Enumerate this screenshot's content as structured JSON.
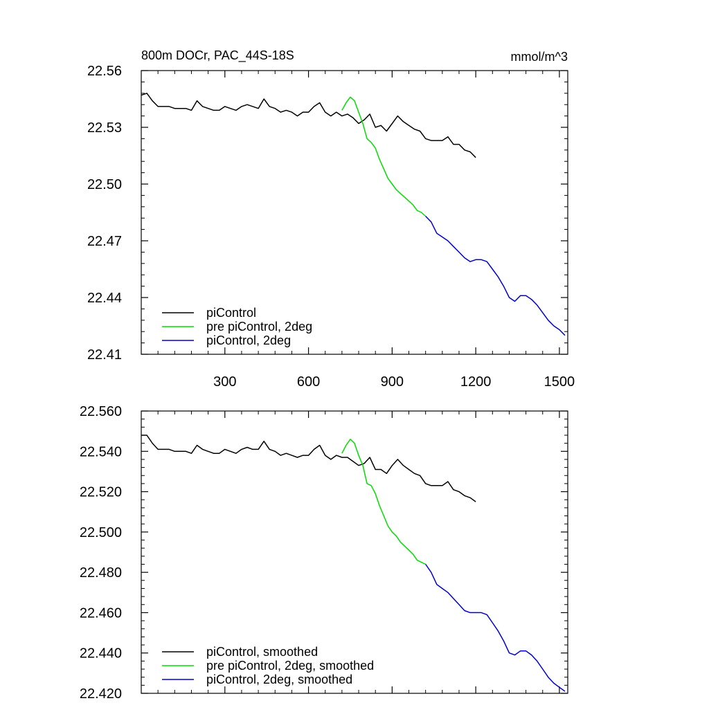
{
  "chart_data": [
    {
      "type": "line",
      "title": "800m DOCr, PAC_44S-18S",
      "units": "mmol/m^3",
      "xlim": [
        0,
        1530
      ],
      "ylim": [
        22.41,
        22.56
      ],
      "xticks": [
        300,
        600,
        900,
        1200,
        1500
      ],
      "xtick_labels": [
        "300",
        "600",
        "900",
        "1200",
        "1500"
      ],
      "yticks": [
        22.41,
        22.44,
        22.47,
        22.5,
        22.53,
        22.56
      ],
      "ytick_labels": [
        "22.41",
        "22.44",
        "22.47",
        "22.50",
        "22.53",
        "22.56"
      ],
      "legend_position": "bottom-left",
      "series": [
        {
          "name": "piControl",
          "color": "#000000",
          "x": [
            0,
            20,
            40,
            60,
            80,
            100,
            120,
            140,
            160,
            180,
            200,
            220,
            240,
            260,
            280,
            300,
            320,
            340,
            360,
            380,
            400,
            420,
            440,
            460,
            480,
            500,
            520,
            540,
            560,
            580,
            600,
            620,
            640,
            660,
            680,
            700,
            720,
            740,
            760,
            780,
            800,
            820,
            840,
            860,
            880,
            900,
            920,
            940,
            960,
            980,
            1000,
            1020,
            1040,
            1060,
            1080,
            1100,
            1120,
            1140,
            1160,
            1180,
            1200
          ],
          "y": [
            22.547,
            22.548,
            22.544,
            22.541,
            22.541,
            22.541,
            22.54,
            22.54,
            22.54,
            22.539,
            22.544,
            22.541,
            22.54,
            22.539,
            22.539,
            22.541,
            22.54,
            22.539,
            22.541,
            22.542,
            22.541,
            22.54,
            22.545,
            22.541,
            22.54,
            22.538,
            22.539,
            22.538,
            22.536,
            22.538,
            22.538,
            22.541,
            22.543,
            22.538,
            22.536,
            22.538,
            22.536,
            22.537,
            22.535,
            22.532,
            22.534,
            22.537,
            22.53,
            22.531,
            22.528,
            22.532,
            22.536,
            22.533,
            22.531,
            22.529,
            22.528,
            22.524,
            22.523,
            22.523,
            22.523,
            22.525,
            22.521,
            22.521,
            22.518,
            22.517,
            22.514
          ]
        },
        {
          "name": "pre piControl, 2deg",
          "color": "#00dd00",
          "x": [
            720,
            735,
            750,
            765,
            780,
            795,
            810,
            825,
            840,
            855,
            870,
            885,
            900,
            915,
            930,
            945,
            960,
            975,
            990,
            1005,
            1020
          ],
          "y": [
            22.539,
            22.543,
            22.546,
            22.544,
            22.538,
            22.532,
            22.524,
            22.522,
            22.519,
            22.513,
            22.508,
            22.503,
            22.5,
            22.497,
            22.495,
            22.493,
            22.491,
            22.489,
            22.486,
            22.485,
            22.483
          ]
        },
        {
          "name": "piControl, 2deg",
          "color": "#0000cc",
          "x": [
            1020,
            1040,
            1060,
            1080,
            1100,
            1120,
            1140,
            1160,
            1180,
            1200,
            1220,
            1240,
            1260,
            1280,
            1300,
            1320,
            1340,
            1360,
            1380,
            1400,
            1420,
            1440,
            1460,
            1480,
            1500,
            1520
          ],
          "y": [
            22.483,
            22.48,
            22.474,
            22.472,
            22.47,
            22.467,
            22.464,
            22.461,
            22.459,
            22.46,
            22.46,
            22.459,
            22.455,
            22.451,
            22.446,
            22.44,
            22.438,
            22.441,
            22.441,
            22.439,
            22.436,
            22.432,
            22.428,
            22.425,
            22.423,
            22.42
          ]
        }
      ]
    },
    {
      "type": "line",
      "title": "",
      "xlim": [
        0,
        1530
      ],
      "ylim": [
        22.42,
        22.56
      ],
      "xticks": [
        300,
        600,
        900,
        1200,
        1500
      ],
      "yticks": [
        22.42,
        22.44,
        22.46,
        22.48,
        22.5,
        22.52,
        22.54,
        22.56
      ],
      "ytick_labels": [
        "22.420",
        "22.440",
        "22.460",
        "22.480",
        "22.500",
        "22.520",
        "22.540",
        "22.560"
      ],
      "legend_position": "bottom-left",
      "series": [
        {
          "name": "piControl, smoothed",
          "color": "#000000",
          "x": [
            0,
            20,
            40,
            60,
            80,
            100,
            120,
            140,
            160,
            180,
            200,
            220,
            240,
            260,
            280,
            300,
            320,
            340,
            360,
            380,
            400,
            420,
            440,
            460,
            480,
            500,
            520,
            540,
            560,
            580,
            600,
            620,
            640,
            660,
            680,
            700,
            720,
            740,
            760,
            780,
            800,
            820,
            840,
            860,
            880,
            900,
            920,
            940,
            960,
            980,
            1000,
            1020,
            1040,
            1060,
            1080,
            1100,
            1120,
            1140,
            1160,
            1180,
            1200
          ],
          "y": [
            22.548,
            22.548,
            22.544,
            22.541,
            22.541,
            22.541,
            22.54,
            22.54,
            22.54,
            22.539,
            22.543,
            22.541,
            22.54,
            22.539,
            22.539,
            22.541,
            22.54,
            22.539,
            22.541,
            22.542,
            22.541,
            22.541,
            22.545,
            22.541,
            22.54,
            22.538,
            22.539,
            22.538,
            22.537,
            22.538,
            22.538,
            22.541,
            22.543,
            22.538,
            22.536,
            22.538,
            22.537,
            22.537,
            22.535,
            22.533,
            22.534,
            22.537,
            22.531,
            22.531,
            22.529,
            22.533,
            22.536,
            22.533,
            22.531,
            22.529,
            22.528,
            22.524,
            22.523,
            22.523,
            22.523,
            22.525,
            22.521,
            22.52,
            22.518,
            22.517,
            22.515
          ]
        },
        {
          "name": "pre piControl, 2deg, smoothed",
          "color": "#00dd00",
          "x": [
            720,
            735,
            750,
            765,
            780,
            795,
            810,
            825,
            840,
            855,
            870,
            885,
            900,
            915,
            930,
            945,
            960,
            975,
            990,
            1005,
            1020
          ],
          "y": [
            22.539,
            22.543,
            22.546,
            22.544,
            22.538,
            22.533,
            22.524,
            22.523,
            22.519,
            22.513,
            22.508,
            22.503,
            22.5,
            22.498,
            22.495,
            22.493,
            22.491,
            22.489,
            22.486,
            22.485,
            22.484
          ]
        },
        {
          "name": "piControl, 2deg, smoothed",
          "color": "#0000cc",
          "x": [
            1020,
            1040,
            1060,
            1080,
            1100,
            1120,
            1140,
            1160,
            1180,
            1200,
            1220,
            1240,
            1260,
            1280,
            1300,
            1320,
            1340,
            1360,
            1380,
            1400,
            1420,
            1440,
            1460,
            1480,
            1500,
            1520
          ],
          "y": [
            22.484,
            22.48,
            22.474,
            22.472,
            22.47,
            22.467,
            22.464,
            22.461,
            22.46,
            22.46,
            22.46,
            22.459,
            22.455,
            22.451,
            22.446,
            22.44,
            22.439,
            22.441,
            22.441,
            22.439,
            22.436,
            22.432,
            22.428,
            22.425,
            22.423,
            22.421
          ]
        }
      ]
    }
  ]
}
